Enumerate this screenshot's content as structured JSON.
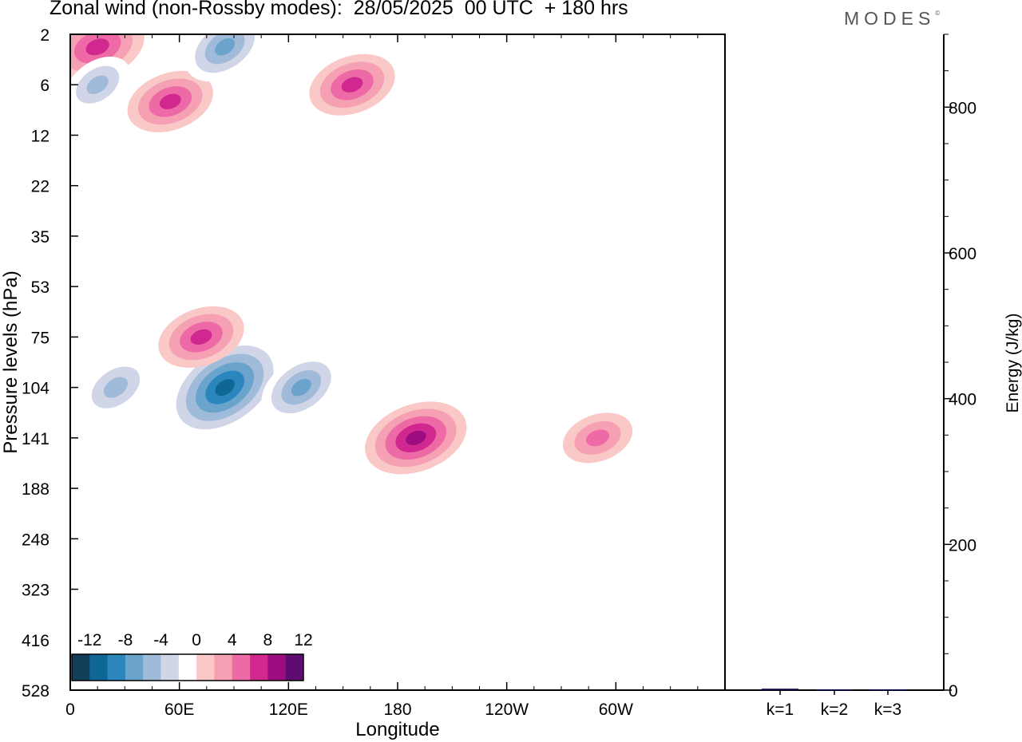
{
  "header": {
    "title": "Zonal wind (non-Rossby modes):  28/05/2025  00 UTC  + 180 hrs",
    "logo": "MODES",
    "logo_mark": "©"
  },
  "chart_data": [
    {
      "type": "heatmap",
      "title": "Zonal wind (non-Rossby modes):  28/05/2025  00 UTC  + 180 hrs",
      "xlabel": "Longitude",
      "ylabel": "Pressure levels (hPa)",
      "x_ticks": [
        "0",
        "60E",
        "120E",
        "180",
        "120W",
        "60W"
      ],
      "x_tick_values": [
        0,
        60,
        120,
        180,
        240,
        300
      ],
      "xlim": [
        0,
        360
      ],
      "y_ticks": [
        2,
        6,
        12,
        22,
        35,
        53,
        75,
        104,
        141,
        188,
        248,
        323,
        416,
        528
      ],
      "y_scale": "hybrid (model levels), inverted",
      "colorbar": {
        "tick_labels": [
          "-12",
          "-8",
          "-4",
          "0",
          "4",
          "8",
          "12"
        ],
        "levels": [
          -14,
          -12,
          -10,
          -8,
          -6,
          -4,
          -2,
          0,
          2,
          4,
          6,
          8,
          10,
          12,
          14
        ],
        "colors": [
          "#123e57",
          "#0e6795",
          "#2a86bd",
          "#6aa3cb",
          "#9fbbd9",
          "#d0d5e8",
          "#ffffff",
          "#fac8c7",
          "#f6a0b4",
          "#ee6aa6",
          "#d1288f",
          "#9c0e7f",
          "#5e0c6f"
        ]
      },
      "features": [
        {
          "sign": "negative",
          "peak": -13,
          "center_lon": 85,
          "center_level": 104
        },
        {
          "sign": "negative",
          "peak": -8,
          "center_lon": 127,
          "center_level": 104
        },
        {
          "sign": "negative",
          "peak": -7,
          "center_lon": 25,
          "center_level": 104
        },
        {
          "sign": "positive",
          "peak": 10,
          "center_lon": 190,
          "center_level": 141
        },
        {
          "sign": "positive",
          "peak": 6,
          "center_lon": 290,
          "center_level": 141
        },
        {
          "sign": "positive",
          "peak": 8,
          "center_lon": 72,
          "center_level": 75
        },
        {
          "sign": "positive",
          "peak": 9,
          "center_lon": 15,
          "center_level": 3
        },
        {
          "sign": "positive",
          "peak": 8,
          "center_lon": 55,
          "center_level": 8
        },
        {
          "sign": "positive",
          "peak": 8,
          "center_lon": 155,
          "center_level": 6
        },
        {
          "sign": "negative",
          "peak": -8,
          "center_lon": 85,
          "center_level": 3
        },
        {
          "sign": "negative",
          "peak": -6,
          "center_lon": 15,
          "center_level": 6
        }
      ]
    },
    {
      "type": "bar",
      "categories": [
        "k=1",
        "k=2",
        "k=3"
      ],
      "values": [
        2,
        1,
        1
      ],
      "ylabel": "Energy (J/kg)",
      "ylim": [
        0,
        900
      ],
      "y_ticks": [
        0,
        200,
        400,
        600,
        800
      ],
      "bar_color": "#0c0c4c"
    }
  ]
}
